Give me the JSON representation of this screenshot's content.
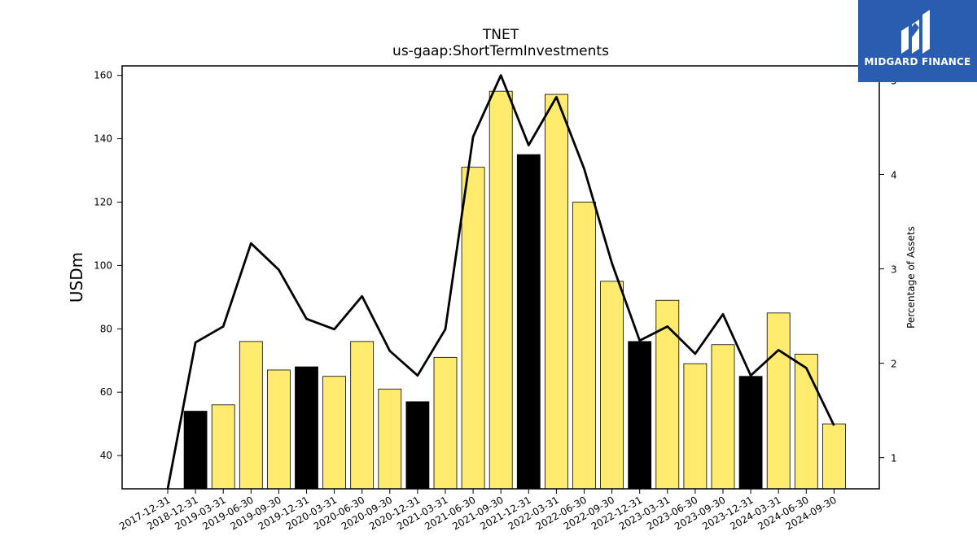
{
  "chart_data": {
    "type": "bar",
    "title": "TNET",
    "subtitle": "us-gaap:ShortTermInvestments",
    "ylabel": "USDm",
    "y2label": "Percentage of Assets",
    "ylim": [
      29.5,
      163
    ],
    "y2lim": [
      0.67,
      5.15
    ],
    "yticks": [
      40,
      60,
      80,
      100,
      120,
      140,
      160
    ],
    "y2ticks": [
      1,
      2,
      3,
      4,
      5
    ],
    "categories": [
      "2017-12-31",
      "2018-12-31",
      "2019-03-31",
      "2019-06-30",
      "2019-09-30",
      "2019-12-31",
      "2020-03-31",
      "2020-06-30",
      "2020-09-30",
      "2020-12-31",
      "2021-03-31",
      "2021-06-30",
      "2021-09-30",
      "2021-12-31",
      "2022-03-31",
      "2022-06-30",
      "2022-09-30",
      "2022-12-31",
      "2023-03-31",
      "2023-06-30",
      "2023-09-30",
      "2023-12-31",
      "2024-03-31",
      "2024-06-30",
      "2024-09-30"
    ],
    "series": [
      {
        "type": "bar",
        "values": [
          null,
          54,
          56,
          76,
          67,
          68,
          65,
          76,
          61,
          57,
          71,
          131,
          155,
          135,
          154,
          120,
          95,
          76,
          89,
          69,
          75,
          65,
          85,
          72,
          50
        ],
        "fiscal_year_end": [
          false,
          true,
          false,
          false,
          false,
          true,
          false,
          false,
          false,
          true,
          false,
          false,
          false,
          true,
          false,
          false,
          false,
          true,
          false,
          false,
          false,
          true,
          false,
          false,
          false
        ]
      },
      {
        "type": "line",
        "axis": "y2",
        "values": [
          0.67,
          2.22,
          2.39,
          3.27,
          2.99,
          2.47,
          2.36,
          2.71,
          2.13,
          1.87,
          2.36,
          4.4,
          5.05,
          4.31,
          4.82,
          4.06,
          3.06,
          2.24,
          2.39,
          2.1,
          2.52,
          1.87,
          2.14,
          1.95,
          1.34
        ]
      }
    ],
    "colors": {
      "bar": "#ffec6e",
      "bar_year_end": "#000000",
      "line": "#000000"
    },
    "grid": false
  },
  "logo": {
    "text": "MIDGARD FINANCE",
    "background": "#2a5db0"
  }
}
